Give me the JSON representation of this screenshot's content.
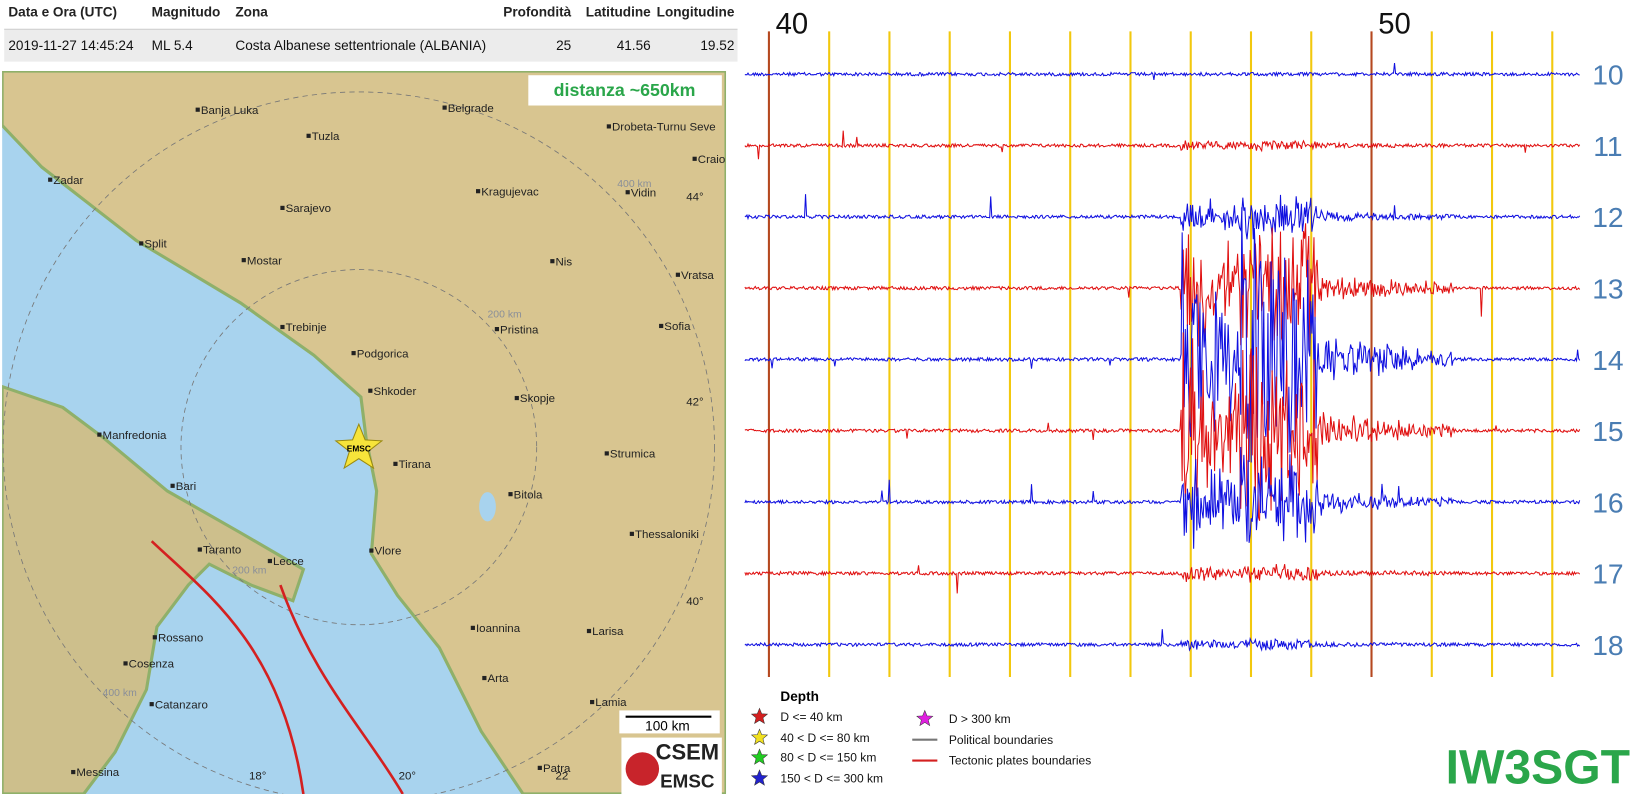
{
  "table": {
    "header": [
      "Data e Ora (UTC)",
      "Magnitudo",
      "Zona",
      "Profondità",
      "Latitudine",
      "Longitudine"
    ],
    "rows": [
      [
        "2019-11-27 14:45:24",
        "ML 5.4",
        "Costa Albanese settentrionale (ALBANIA)",
        "25",
        "41.56",
        "19.52"
      ]
    ]
  },
  "map": {
    "distance": "distanza ~650km",
    "cities": [
      "Banja Luka",
      "Belgrade",
      "Tuzla",
      "Drobeta-Turnu Seve",
      "Craio",
      "Zadar",
      "Kragujevac",
      "Vidin",
      "Sarajevo",
      "Split",
      "Mostar",
      "Nis",
      "Vratsa",
      "Trebinje",
      "Pristina",
      "Sofia",
      "Podgorica",
      "Shkoder",
      "Skopje",
      "Manfredonia",
      "Tirana",
      "Strumica",
      "Bari",
      "Bitola",
      "Thessaloniki",
      "Taranto",
      "Lecce",
      "Vlore",
      "Rossano",
      "Ioannina",
      "Larisa",
      "Cosenza",
      "Arta",
      "Catanzaro",
      "Lamia",
      "Messina",
      "Patra"
    ],
    "graticule": [
      "44°",
      "42°",
      "40°",
      "18°",
      "20°",
      "22"
    ],
    "rings": [
      "400 km",
      "200 km",
      "200 km",
      "400 km"
    ],
    "epicenter": "EMSC",
    "scale": "100 km",
    "logo": [
      "CSEM",
      "EMSC"
    ]
  },
  "legend": {
    "title": "Depth",
    "items": [
      "D <= 40 km",
      "40 < D <= 80 km",
      "80 < D <= 150 km",
      "150 < D <= 300 km",
      "D > 300 km",
      "Political boundaries",
      "Tectonic plates boundaries"
    ]
  },
  "seismogram": {
    "minutes": [
      "40",
      "50"
    ],
    "hours": [
      "10",
      "11",
      "12",
      "13",
      "14",
      "15",
      "16",
      "17",
      "18"
    ]
  },
  "station": "IW3SGT"
}
